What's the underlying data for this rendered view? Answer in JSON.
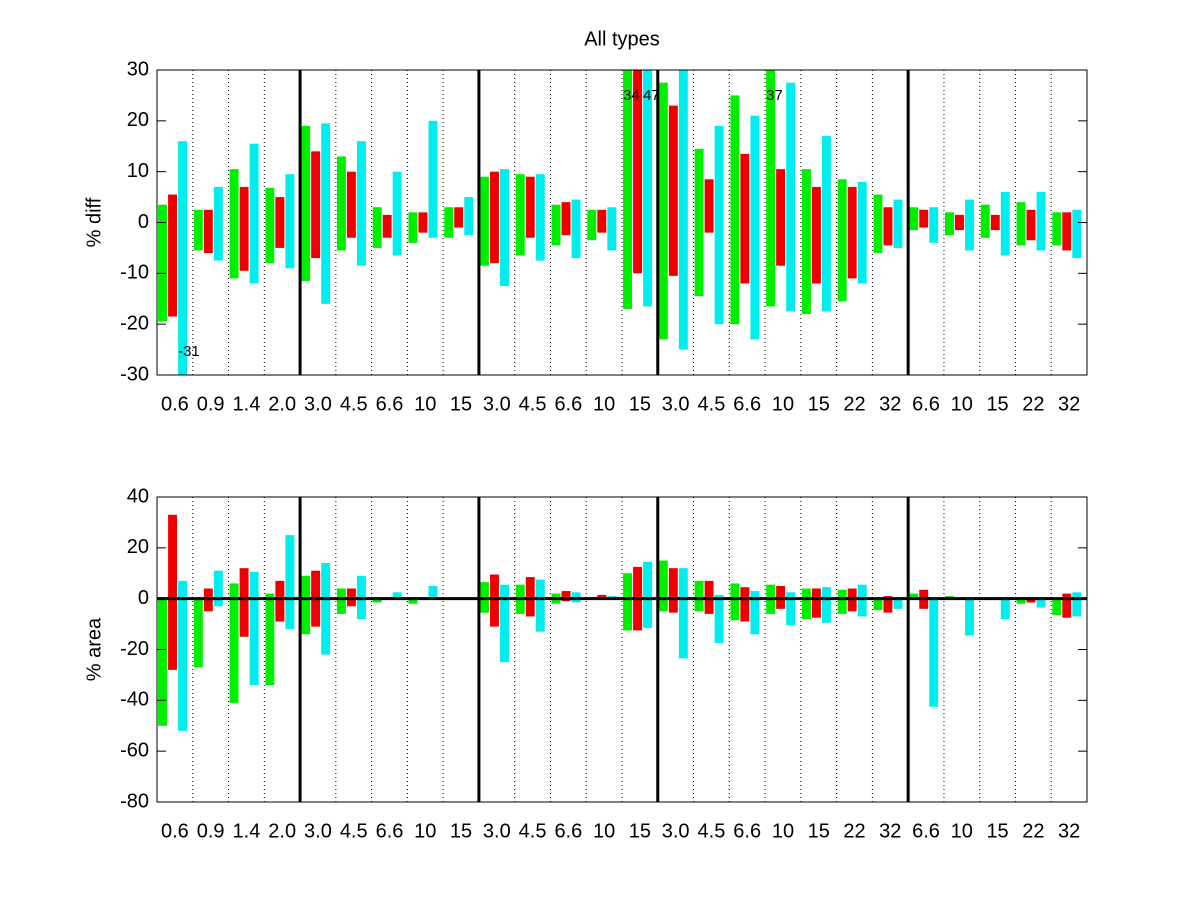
{
  "chart_data": [
    {
      "type": "floating_bar",
      "title": "All types",
      "ylabel": "% diff",
      "categories": [
        "0.6",
        "0.9",
        "1.4",
        "2.0",
        "3.0",
        "4.5",
        "6.6",
        "10",
        "15",
        "3.0",
        "4.5",
        "6.6",
        "10",
        "15",
        "3.0",
        "4.5",
        "6.6",
        "10",
        "15",
        "22",
        "32",
        "6.6",
        "10",
        "15",
        "22",
        "32"
      ],
      "ylim": [
        -30,
        30
      ],
      "yticks": [
        -30,
        -20,
        -10,
        0,
        10,
        20,
        30
      ],
      "zero_line": false,
      "series": [
        {
          "color": "#00ee00",
          "high": [
            3.5,
            2.5,
            10.5,
            6.8,
            19,
            13,
            3,
            2,
            3,
            9,
            9.5,
            3.5,
            2.5,
            34,
            27.5,
            14.5,
            25,
            37,
            10.5,
            8.5,
            5.5,
            3,
            2,
            3.5,
            4,
            2
          ],
          "low": [
            -19.5,
            -5.5,
            -11,
            -8,
            -11.5,
            -5.5,
            -5,
            -4,
            -3,
            -8.5,
            -6.5,
            -4.5,
            -3.5,
            -17,
            -23,
            -14.5,
            -20,
            -16.5,
            -18,
            -15.5,
            -6,
            -1.5,
            -2.5,
            -3,
            -4.5,
            -4.5
          ],
          "high_labels": [
            null,
            null,
            null,
            null,
            null,
            null,
            null,
            null,
            null,
            null,
            null,
            null,
            null,
            "34",
            null,
            null,
            null,
            "37",
            null,
            null,
            null,
            null,
            null,
            null,
            null,
            null
          ]
        },
        {
          "color": "#ee0000",
          "high": [
            5.5,
            2.5,
            7,
            5,
            14,
            10,
            1.5,
            2,
            3,
            10,
            9,
            4,
            2.5,
            30,
            23,
            8.5,
            13.5,
            10.5,
            7,
            7,
            3,
            2.5,
            1.5,
            1.5,
            2.5,
            2
          ],
          "low": [
            -18.5,
            -6,
            -9.5,
            -5,
            -7,
            -3,
            -3,
            -2,
            -1,
            -8,
            -3,
            -2.5,
            -2,
            -10,
            -10.5,
            -2,
            -12,
            -8.5,
            -12,
            -11,
            -4.5,
            -1,
            -1.5,
            -1.5,
            -3.5,
            -5.5
          ]
        },
        {
          "color": "#00eeee",
          "high": [
            16,
            7,
            15.5,
            9.5,
            19.5,
            16,
            10,
            20,
            5,
            10.5,
            9.5,
            4.5,
            3,
            47,
            30,
            19,
            21,
            27.5,
            17,
            8,
            4.5,
            3,
            4.5,
            6,
            6,
            2.5
          ],
          "low": [
            -31,
            -7.5,
            -12,
            -9,
            -16,
            -8.5,
            -6.5,
            -3,
            -2.5,
            -12.5,
            -7.5,
            -7,
            -5.5,
            -16.5,
            -25,
            -20,
            -23,
            -17.5,
            -17.5,
            -12,
            -5,
            -4,
            -5.5,
            -6.5,
            -5.5,
            -7
          ],
          "low_labels": [
            "-31",
            null,
            null,
            null,
            null,
            null,
            null,
            null,
            null,
            null,
            null,
            null,
            null,
            null,
            null,
            null,
            null,
            null,
            null,
            null,
            null,
            null,
            null,
            null,
            null,
            null
          ],
          "high_labels": [
            null,
            null,
            null,
            null,
            null,
            null,
            null,
            null,
            null,
            null,
            null,
            null,
            null,
            "47",
            null,
            null,
            null,
            null,
            null,
            null,
            null,
            null,
            null,
            null,
            null,
            null
          ]
        }
      ]
    },
    {
      "type": "floating_bar",
      "ylabel": "% area",
      "categories": [
        "0.6",
        "0.9",
        "1.4",
        "2.0",
        "3.0",
        "4.5",
        "6.6",
        "10",
        "15",
        "3.0",
        "4.5",
        "6.6",
        "10",
        "15",
        "3.0",
        "4.5",
        "6.6",
        "10",
        "15",
        "22",
        "32",
        "6.6",
        "10",
        "15",
        "22",
        "32"
      ],
      "ylim": [
        -80,
        40
      ],
      "yticks": [
        -80,
        -60,
        -40,
        -20,
        0,
        20,
        40
      ],
      "zero_line": true,
      "series": [
        {
          "color": "#00ee00",
          "high": [
            0,
            0,
            6,
            2,
            9,
            4,
            0,
            0,
            0.5,
            6.5,
            5.5,
            2,
            0.3,
            10,
            15,
            7,
            6,
            5.5,
            4,
            3.5,
            0,
            2,
            1,
            0.3,
            0,
            0
          ],
          "low": [
            -50,
            -27,
            -41,
            -34,
            -14,
            -6,
            -1.5,
            -2,
            -0.5,
            -5.5,
            -6,
            -2,
            -0.3,
            -12.5,
            -5,
            -5,
            -8.5,
            -6,
            -8,
            -6,
            -4.5,
            0,
            0,
            0,
            -2,
            -6.5
          ]
        },
        {
          "color": "#ee0000",
          "high": [
            33,
            4,
            12,
            7,
            11,
            4,
            0.5,
            0.5,
            0.3,
            9.5,
            8.5,
            3,
            1.5,
            12.5,
            12,
            7,
            4.5,
            5,
            4,
            4,
            1,
            3.5,
            0.3,
            0.3,
            0,
            2
          ],
          "low": [
            -28,
            -5,
            -15,
            -9,
            -11,
            -3,
            0,
            0,
            -0.3,
            -11,
            -7,
            -1,
            -0.5,
            -12.5,
            -5.5,
            -6,
            -9,
            -4,
            -7.5,
            -5,
            -5.5,
            -4,
            0,
            0,
            -1.5,
            -7.5
          ]
        },
        {
          "color": "#00eeee",
          "high": [
            7,
            11,
            10.5,
            25,
            14,
            9,
            2.5,
            5,
            0.5,
            5.5,
            7.5,
            2.5,
            1,
            14.5,
            12,
            1.5,
            3,
            2.5,
            4.5,
            5.5,
            0,
            0,
            0,
            0,
            0,
            2.5
          ],
          "low": [
            -52,
            -3,
            -34,
            -12,
            -22,
            -8,
            0,
            0,
            -0.5,
            -25,
            -13,
            -1.5,
            0,
            -11.5,
            -23.5,
            -17.5,
            -14,
            -10.5,
            -9.5,
            -7,
            -4,
            -42.5,
            -14.5,
            -8,
            -3.5,
            -7
          ]
        }
      ]
    }
  ]
}
